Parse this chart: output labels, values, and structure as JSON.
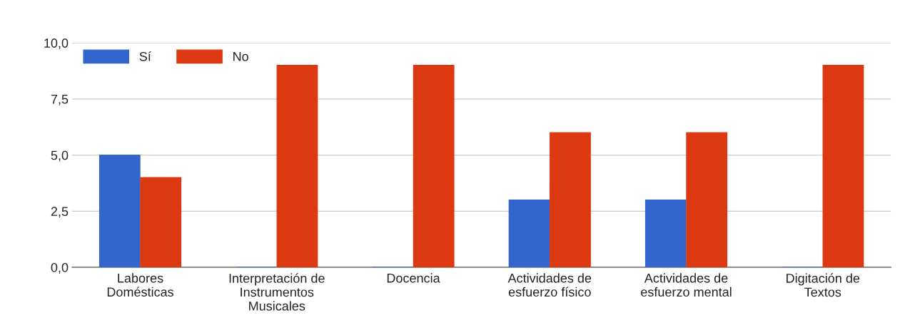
{
  "chart_data": {
    "type": "bar",
    "categories": [
      "Labores\nDomésticas",
      "Interpretación de\nInstrumentos\nMusicales",
      "Docencia",
      "Actividades de\nesfuerzo físico",
      "Actividades de\nesfuerzo mental",
      "Digitación de\nTextos"
    ],
    "series": [
      {
        "name": "Sí",
        "color": "#3366cc",
        "values": [
          5,
          0,
          0,
          3,
          3,
          0
        ]
      },
      {
        "name": "No",
        "color": "#dc3912",
        "values": [
          4,
          9,
          9,
          6,
          6,
          9
        ]
      }
    ],
    "ylim": [
      0,
      10
    ],
    "yticks": [
      {
        "value": 0,
        "label": "0,0"
      },
      {
        "value": 2.5,
        "label": "2,5"
      },
      {
        "value": 5,
        "label": "5,0"
      },
      {
        "value": 7.5,
        "label": "7,5"
      },
      {
        "value": 10,
        "label": "10,0"
      }
    ],
    "grid": "y",
    "legend": "top left"
  }
}
